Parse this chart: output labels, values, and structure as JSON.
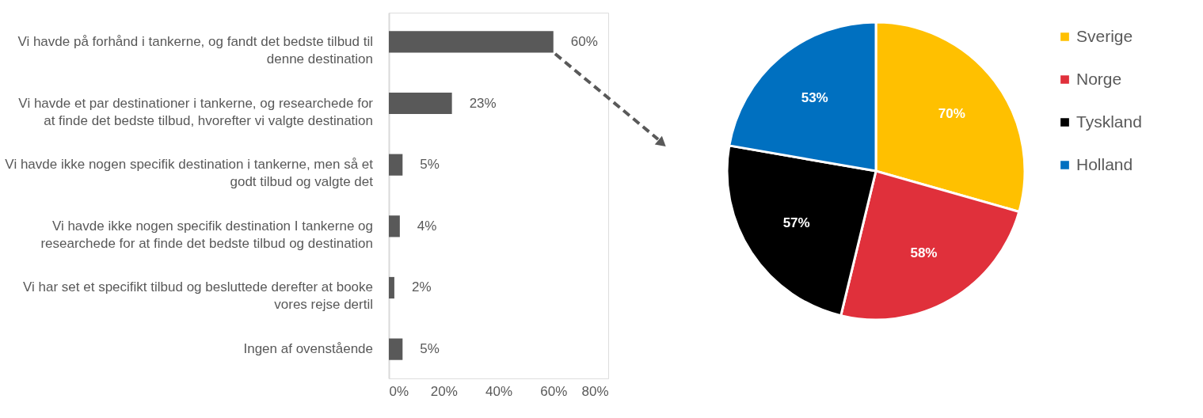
{
  "chart_data": [
    {
      "type": "bar",
      "orientation": "horizontal",
      "categories": [
        "Vi havde på forhånd i tankerne, og fandt det bedste tilbud til denne destination",
        "Vi havde et par destinationer i tankerne, og researchede for at finde det bedste tilbud, hvorefter vi valgte destination",
        "Vi havde ikke nogen specifik destination i tankerne, men så et godt tilbud og valgte det",
        "Vi havde ikke nogen specifik destination I tankerne og researchede for at finde det bedste tilbud og destination",
        "Vi har set et specifikt tilbud og besluttede derefter at booke vores rejse dertil",
        "Ingen af ovenstående"
      ],
      "values": [
        60,
        23,
        5,
        4,
        2,
        5
      ],
      "value_labels": [
        "60%",
        "23%",
        "5%",
        "4%",
        "2%",
        "5%"
      ],
      "color": "#595959",
      "xlim": [
        0,
        80
      ],
      "xticks": [
        {
          "value": 0,
          "label": "0%"
        },
        {
          "value": 20,
          "label": "20%"
        },
        {
          "value": 40,
          "label": "40%"
        },
        {
          "value": 60,
          "label": "60%"
        },
        {
          "value": 80,
          "label": "80%"
        }
      ],
      "grid": false
    },
    {
      "type": "pie",
      "categories": [
        "Sverige",
        "Norge",
        "Tyskland",
        "Holland"
      ],
      "values": [
        70,
        58,
        57,
        53
      ],
      "value_labels": [
        "70%",
        "58%",
        "57%",
        "53%"
      ],
      "colors": [
        "#ffc000",
        "#e0303b",
        "#000000",
        "#0070c0"
      ],
      "legend": "right"
    }
  ]
}
